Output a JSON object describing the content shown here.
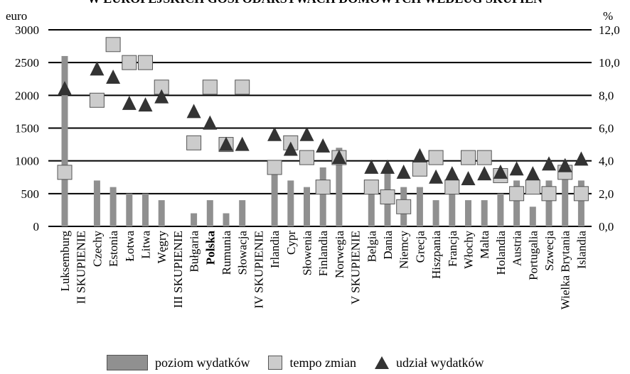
{
  "chart_data": {
    "type": "bar",
    "title": "W EUROPEJSKICH GOSPODARSTWACH DOMOWYCH WEDŁUG SKUPIEŃ",
    "y_left_unit": "euro",
    "y_right_unit": "%",
    "ylim_left": [
      0,
      3000
    ],
    "ylim_right": [
      0,
      12
    ],
    "y_left_ticks": [
      "0",
      "500",
      "1000",
      "1500",
      "2000",
      "2500",
      "3000"
    ],
    "y_right_ticks": [
      "0,0",
      "2,0",
      "4,0",
      "6,0",
      "8,0",
      "10,0",
      "12,0"
    ],
    "grid": true,
    "legend_position": "bottom",
    "categories": [
      "Luksemburg",
      "II SKUPIENIE",
      "Czechy",
      "Estonia",
      "Łotwa",
      "Litwa",
      "Węgry",
      "III SKUPIENIE",
      "Bułgaria",
      "Polska",
      "Rumunia",
      "Słowacja",
      "IV SKUPIENIE",
      "Irlandia",
      "Cypr",
      "Słowenia",
      "Finlandia",
      "Norwegia",
      "V SKUPIENIE",
      "Belgia",
      "Dania",
      "Niemcy",
      "Grecja",
      "Hiszpania",
      "Francja",
      "Włochy",
      "Malta",
      "Holandia",
      "Austria",
      "Portugalia",
      "Szwecja",
      "Wielka Brytania",
      "Islandia"
    ],
    "bold_categories": [
      "Polska"
    ],
    "series": [
      {
        "name": "poziom wydatków",
        "kind": "bar",
        "axis": "left",
        "color": "#909090",
        "values": [
          2600,
          null,
          700,
          600,
          500,
          500,
          400,
          null,
          200,
          400,
          200,
          400,
          null,
          800,
          700,
          600,
          900,
          1200,
          null,
          600,
          900,
          600,
          600,
          400,
          500,
          400,
          400,
          500,
          700,
          300,
          700,
          900,
          700
        ]
      },
      {
        "name": "tempo zmian",
        "kind": "square",
        "axis": "right",
        "color": "#cccccc",
        "values": [
          3.3,
          null,
          7.7,
          11.1,
          10.0,
          10.0,
          8.5,
          null,
          5.1,
          8.5,
          5.0,
          8.5,
          null,
          3.6,
          5.1,
          4.2,
          2.4,
          4.2,
          null,
          2.4,
          1.8,
          1.2,
          3.5,
          4.2,
          2.4,
          4.2,
          4.2,
          3.1,
          2.0,
          2.4,
          2.0,
          3.3,
          2.0
        ]
      },
      {
        "name": "udział wydatków",
        "kind": "triangle",
        "axis": "right",
        "color": "#333333",
        "values": [
          8.4,
          null,
          9.6,
          9.1,
          7.5,
          7.4,
          7.9,
          null,
          7.0,
          6.3,
          5.0,
          5.0,
          null,
          5.6,
          4.7,
          5.6,
          4.9,
          4.2,
          null,
          3.6,
          3.6,
          3.3,
          4.3,
          3.0,
          3.2,
          2.9,
          3.2,
          3.3,
          3.5,
          3.2,
          3.8,
          3.7,
          4.1
        ]
      }
    ]
  }
}
